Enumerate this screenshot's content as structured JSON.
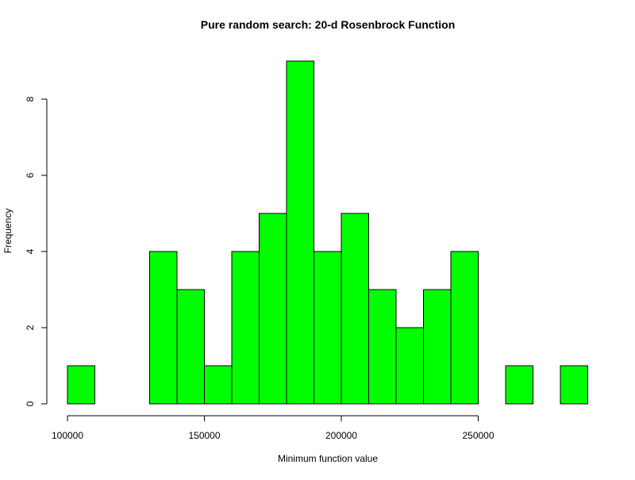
{
  "chart_data": {
    "type": "bar",
    "subtype": "histogram",
    "title": "Pure random search: 20-d Rosenbrock Function",
    "xlabel": "Minimum function value",
    "ylabel": "Frequency",
    "bin_width": 10000,
    "bins": [
      {
        "start": 100000,
        "end": 110000,
        "count": 1
      },
      {
        "start": 110000,
        "end": 120000,
        "count": 0
      },
      {
        "start": 120000,
        "end": 130000,
        "count": 0
      },
      {
        "start": 130000,
        "end": 140000,
        "count": 4
      },
      {
        "start": 140000,
        "end": 150000,
        "count": 3
      },
      {
        "start": 150000,
        "end": 160000,
        "count": 1
      },
      {
        "start": 160000,
        "end": 170000,
        "count": 4
      },
      {
        "start": 170000,
        "end": 180000,
        "count": 5
      },
      {
        "start": 180000,
        "end": 190000,
        "count": 9
      },
      {
        "start": 190000,
        "end": 200000,
        "count": 4
      },
      {
        "start": 200000,
        "end": 210000,
        "count": 5
      },
      {
        "start": 210000,
        "end": 220000,
        "count": 3
      },
      {
        "start": 220000,
        "end": 230000,
        "count": 2
      },
      {
        "start": 230000,
        "end": 240000,
        "count": 3
      },
      {
        "start": 240000,
        "end": 250000,
        "count": 4
      },
      {
        "start": 250000,
        "end": 260000,
        "count": 0
      },
      {
        "start": 260000,
        "end": 270000,
        "count": 1
      },
      {
        "start": 270000,
        "end": 280000,
        "count": 0
      },
      {
        "start": 280000,
        "end": 290000,
        "count": 1
      }
    ],
    "xlim": [
      100000,
      290000
    ],
    "ylim": [
      0,
      9
    ],
    "x_ticks": [
      100000,
      150000,
      200000,
      250000
    ],
    "x_tick_labels": [
      "100000",
      "150000",
      "200000",
      "250000"
    ],
    "y_ticks": [
      0,
      2,
      4,
      6,
      8
    ],
    "y_tick_labels": [
      "0",
      "2",
      "4",
      "6",
      "8"
    ],
    "bar_color": "#00ff00",
    "bar_border_color": "#000000",
    "grid": false,
    "legend": "none"
  }
}
